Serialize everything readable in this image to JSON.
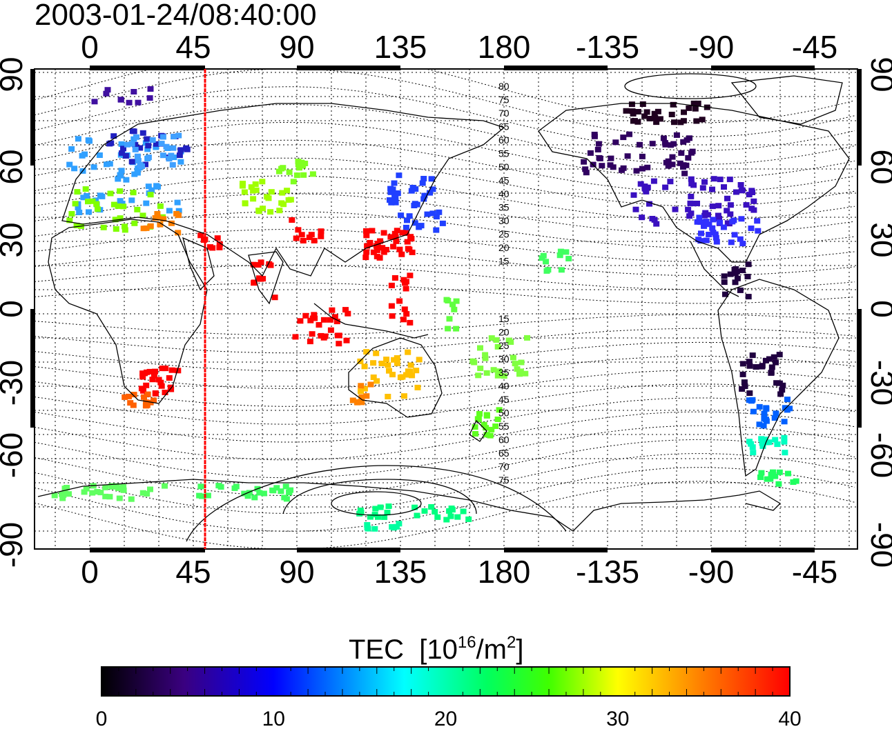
{
  "title": "2003-01-24/08:40:00",
  "colorbar": {
    "label_prefix": "TEC",
    "label_unit_open": "[10",
    "label_unit_exp": "16",
    "label_unit_mid": "/m",
    "label_unit_exp2": "2",
    "label_unit_close": "]",
    "ticks": [
      "0",
      "10",
      "20",
      "30",
      "40"
    ],
    "range": [
      0,
      40
    ],
    "colors": [
      "#000000",
      "#3a0080",
      "#0000ff",
      "#00ffff",
      "#00ff00",
      "#ffff00",
      "#ff8000",
      "#ff0000"
    ]
  },
  "map": {
    "projection": "equirectangular",
    "center_longitude": 135,
    "x_top_labels": [
      "0",
      "45",
      "90",
      "135",
      "180",
      "-135",
      "-90",
      "-45"
    ],
    "x_bottom_labels": [
      "0",
      "45",
      "90",
      "135",
      "180",
      "-135",
      "-90",
      "-45"
    ],
    "y_left_labels": [
      "90",
      "60",
      "30",
      "0",
      "-30",
      "-60",
      "-90"
    ],
    "y_right_labels": [
      "90",
      "60",
      "30",
      "0",
      "-30",
      "-60",
      "-90"
    ],
    "marker_longitude": 50,
    "marker_color": "#ff0000",
    "magnetic_latitude_labels_north": [
      "80",
      "75",
      "70",
      "65",
      "60",
      "55",
      "50",
      "45",
      "40",
      "35",
      "30",
      "25",
      "20",
      "15"
    ],
    "magnetic_latitude_labels_south": [
      "15",
      "20",
      "25",
      "30",
      "35",
      "40",
      "45",
      "50",
      "55",
      "60",
      "65",
      "70",
      "75"
    ]
  }
}
